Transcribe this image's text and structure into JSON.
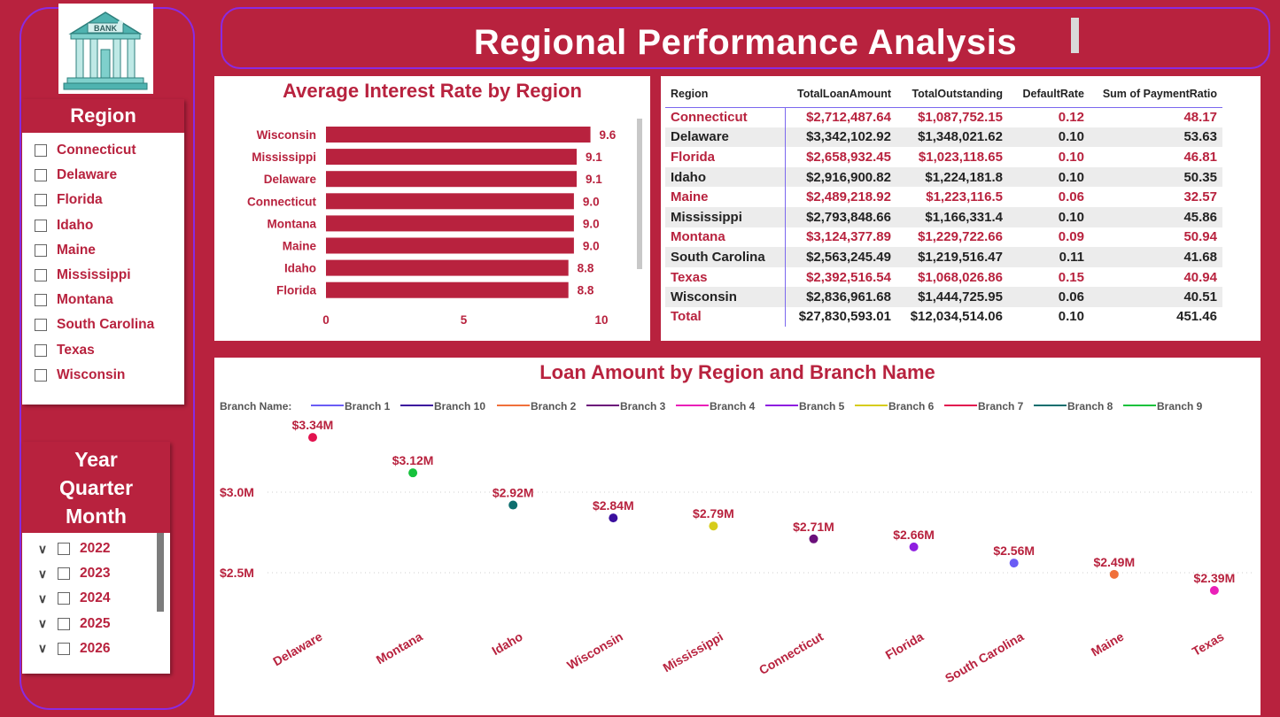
{
  "title": "Regional Performance Analysis",
  "logo": {
    "text": "BANK",
    "icon": "bank-building-icon"
  },
  "colors": {
    "accent": "#b8223e",
    "border_purple": "#8a2be2",
    "white": "#ffffff"
  },
  "region_slicer": {
    "header": "Region",
    "items": [
      "Connecticut",
      "Delaware",
      "Florida",
      "Idaho",
      "Maine",
      "Mississippi",
      "Montana",
      "South Carolina",
      "Texas",
      "Wisconsin"
    ]
  },
  "date_slicer": {
    "header_lines": [
      "Year",
      "Quarter",
      "Month"
    ],
    "years": [
      "2022",
      "2023",
      "2024",
      "2025",
      "2026"
    ]
  },
  "bar_chart": {
    "title": "Average Interest Rate by Region"
  },
  "table": {
    "headers": [
      "Region",
      "TotalLoanAmount",
      "TotalOutstanding",
      "DefaultRate",
      "Sum of PaymentRatio"
    ],
    "rows": [
      [
        "Connecticut",
        "$2,712,487.64",
        "$1,087,752.15",
        "0.12",
        "48.17"
      ],
      [
        "Delaware",
        "$3,342,102.92",
        "$1,348,021.62",
        "0.10",
        "53.63"
      ],
      [
        "Florida",
        "$2,658,932.45",
        "$1,023,118.65",
        "0.10",
        "46.81"
      ],
      [
        "Idaho",
        "$2,916,900.82",
        "$1,224,181.8",
        "0.10",
        "50.35"
      ],
      [
        "Maine",
        "$2,489,218.92",
        "$1,223,116.5",
        "0.06",
        "32.57"
      ],
      [
        "Mississippi",
        "$2,793,848.66",
        "$1,166,331.4",
        "0.10",
        "45.86"
      ],
      [
        "Montana",
        "$3,124,377.89",
        "$1,229,722.66",
        "0.09",
        "50.94"
      ],
      [
        "South Carolina",
        "$2,563,245.49",
        "$1,219,516.47",
        "0.11",
        "41.68"
      ],
      [
        "Texas",
        "$2,392,516.54",
        "$1,068,026.86",
        "0.15",
        "40.94"
      ],
      [
        "Wisconsin",
        "$2,836,961.68",
        "$1,444,725.95",
        "0.06",
        "40.51"
      ]
    ],
    "total": [
      "Total",
      "$27,830,593.01",
      "$12,034,514.06",
      "0.10",
      "451.46"
    ]
  },
  "scatter_chart": {
    "title": "Loan Amount by Region and Branch Name",
    "legend_title": "Branch Name:"
  },
  "chart_data": [
    {
      "type": "bar",
      "orientation": "horizontal",
      "title": "Average Interest Rate by Region",
      "categories": [
        "Wisconsin",
        "Mississippi",
        "Delaware",
        "Connecticut",
        "Montana",
        "Maine",
        "Idaho",
        "Florida"
      ],
      "values": [
        9.6,
        9.1,
        9.1,
        9.0,
        9.0,
        9.0,
        8.8,
        8.8
      ],
      "value_labels": [
        "9.6",
        "9.1",
        "9.1",
        "9.0",
        "9.0",
        "9.0",
        "8.8",
        "8.8"
      ],
      "xlim": [
        0,
        10
      ],
      "xticks": [
        "0",
        "5",
        "10"
      ],
      "bar_color": "#b8223e",
      "grid": false
    },
    {
      "type": "scatter",
      "title": "Loan Amount by Region and Branch Name",
      "legend_placement": "top",
      "legend": [
        {
          "name": "Branch 1",
          "color": "#6a5cf5"
        },
        {
          "name": "Branch 10",
          "color": "#3b0f9e"
        },
        {
          "name": "Branch 2",
          "color": "#f0703a"
        },
        {
          "name": "Branch 3",
          "color": "#6b0f7a"
        },
        {
          "name": "Branch 4",
          "color": "#ea1fb8"
        },
        {
          "name": "Branch 5",
          "color": "#8e1ee0"
        },
        {
          "name": "Branch 6",
          "color": "#d6cc1b"
        },
        {
          "name": "Branch 7",
          "color": "#e2134f"
        },
        {
          "name": "Branch 8",
          "color": "#0d6e6e"
        },
        {
          "name": "Branch 9",
          "color": "#16c23c"
        }
      ],
      "categories": [
        "Delaware",
        "Montana",
        "Idaho",
        "Wisconsin",
        "Mississippi",
        "Connecticut",
        "Florida",
        "South Carolina",
        "Maine",
        "Texas"
      ],
      "points": [
        {
          "x": "Delaware",
          "y": 3.34,
          "label": "$3.34M",
          "branch": "Branch 7"
        },
        {
          "x": "Montana",
          "y": 3.12,
          "label": "$3.12M",
          "branch": "Branch 9"
        },
        {
          "x": "Idaho",
          "y": 2.92,
          "label": "$2.92M",
          "branch": "Branch 8"
        },
        {
          "x": "Wisconsin",
          "y": 2.84,
          "label": "$2.84M",
          "branch": "Branch 10"
        },
        {
          "x": "Mississippi",
          "y": 2.79,
          "label": "$2.79M",
          "branch": "Branch 6"
        },
        {
          "x": "Connecticut",
          "y": 2.71,
          "label": "$2.71M",
          "branch": "Branch 3"
        },
        {
          "x": "Florida",
          "y": 2.66,
          "label": "$2.66M",
          "branch": "Branch 5"
        },
        {
          "x": "South Carolina",
          "y": 2.56,
          "label": "$2.56M",
          "branch": "Branch 1"
        },
        {
          "x": "Maine",
          "y": 2.49,
          "label": "$2.49M",
          "branch": "Branch 2"
        },
        {
          "x": "Texas",
          "y": 2.39,
          "label": "$2.39M",
          "branch": "Branch 4"
        }
      ],
      "y_unit": "millions USD",
      "yticks": [
        {
          "value": 3.0,
          "label": "$3.0M"
        },
        {
          "value": 2.5,
          "label": "$2.5M"
        }
      ],
      "ylim": [
        2.0,
        3.5
      ],
      "grid": "dotted horizontal"
    }
  ]
}
